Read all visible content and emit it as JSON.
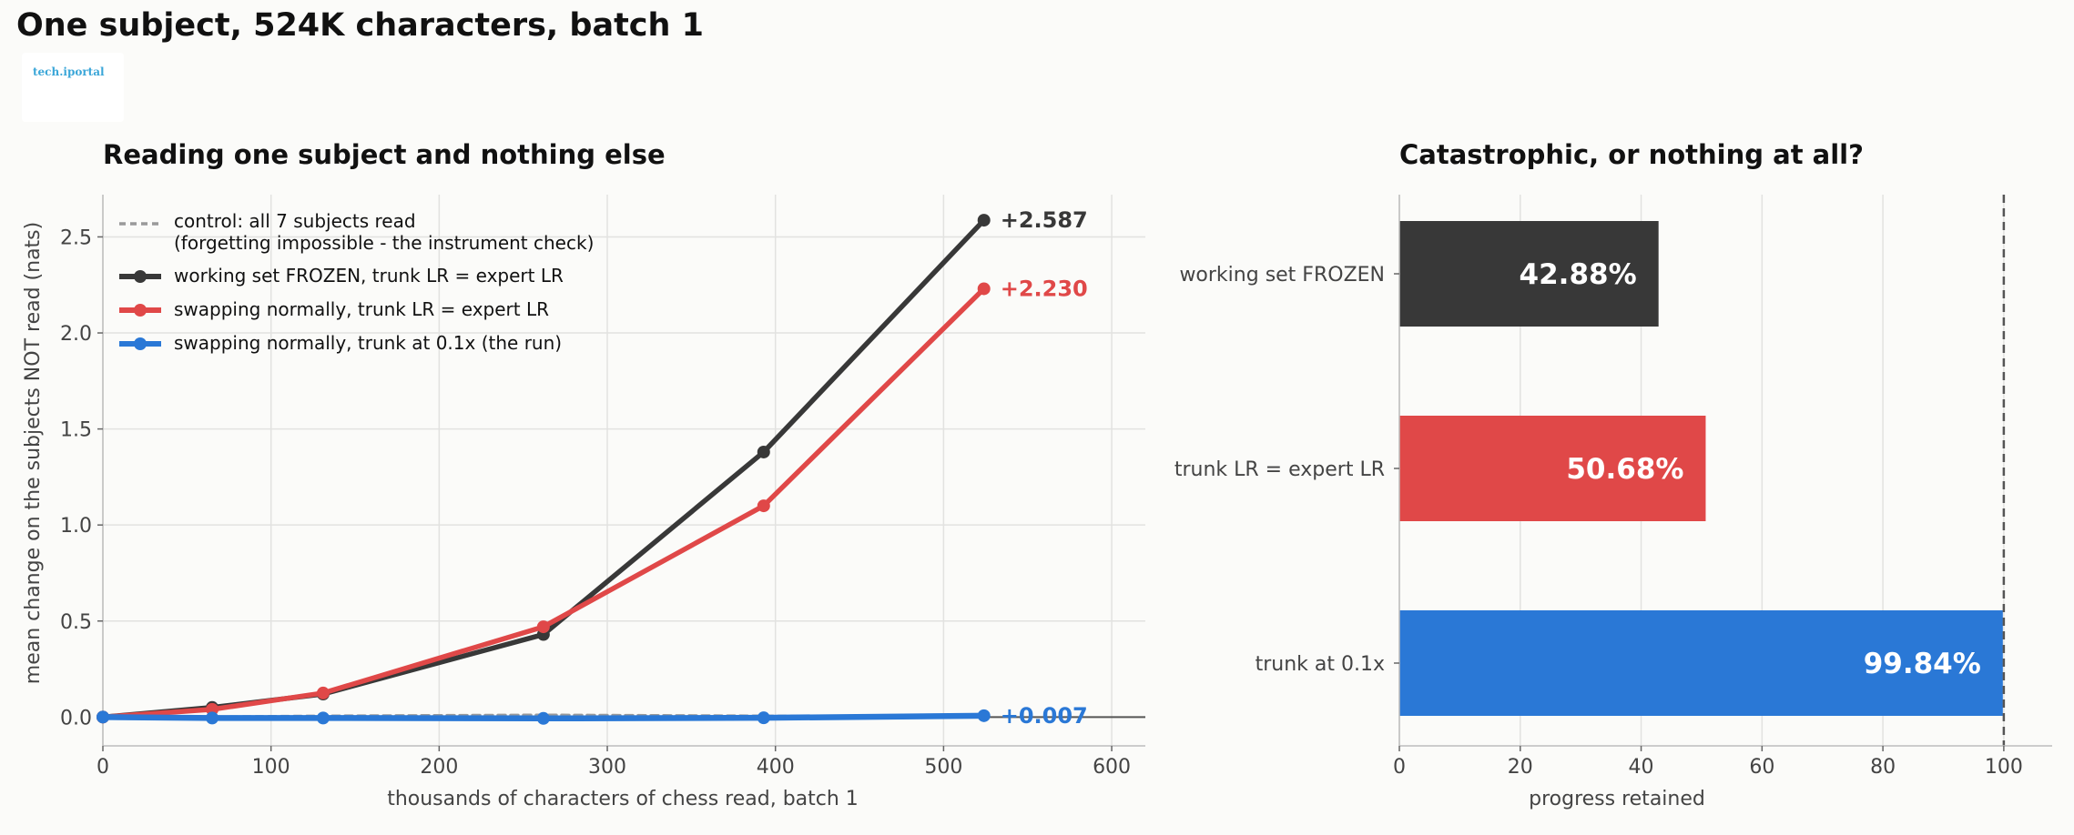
{
  "suptitle": "One subject, 524K characters, batch 1",
  "logo_text": "tech.iportal",
  "chart_data": [
    {
      "type": "line",
      "title": "Reading one subject and nothing else",
      "xlabel": "thousands of characters of chess read, batch 1",
      "ylabel": "mean change on the subjects NOT read (nats)",
      "xlim": [
        0,
        620
      ],
      "ylim": [
        -0.15,
        2.72
      ],
      "xticks": [
        "0",
        "100",
        "200",
        "300",
        "400",
        "500",
        "600"
      ],
      "yticks": [
        "0.0",
        "0.5",
        "1.0",
        "1.5",
        "2.0",
        "2.5"
      ],
      "grid": true,
      "legend_position": "top-left",
      "series": [
        {
          "name": "control: all 7 subjects read",
          "name_line2": "(forgetting impossible - the instrument check)",
          "color": "#9a9a9a",
          "style": "dashed",
          "x": [
            0,
            65,
            131,
            262,
            393,
            524
          ],
          "y": [
            0.0,
            0.0,
            0.005,
            0.01,
            0.005,
            0.0
          ]
        },
        {
          "name": "working set FROZEN, trunk LR = expert LR",
          "color": "#383838",
          "style": "solid",
          "x": [
            0,
            65,
            131,
            262,
            393,
            524
          ],
          "y": [
            0.0,
            0.05,
            0.12,
            0.43,
            1.38,
            2.587
          ],
          "end_label": "+2.587"
        },
        {
          "name": "swapping normally, trunk LR = expert LR",
          "color": "#e04848",
          "style": "solid",
          "x": [
            0,
            65,
            131,
            262,
            393,
            524
          ],
          "y": [
            0.0,
            0.04,
            0.125,
            0.47,
            1.1,
            2.23
          ],
          "end_label": "+2.230"
        },
        {
          "name": "swapping normally, trunk at 0.1x   (the run)",
          "color": "#2a78d6",
          "style": "solid",
          "x": [
            0,
            65,
            131,
            262,
            393,
            524
          ],
          "y": [
            0.0,
            -0.005,
            -0.005,
            -0.007,
            -0.004,
            0.007
          ],
          "end_label": "+0.007"
        }
      ]
    },
    {
      "type": "bar",
      "orientation": "horizontal",
      "title": "Catastrophic, or nothing at all?",
      "xlabel": "progress retained",
      "xlim": [
        0,
        108
      ],
      "xticks": [
        "0",
        "20",
        "40",
        "60",
        "80",
        "100"
      ],
      "reference_line": 100,
      "grid": true,
      "categories": [
        "working set FROZEN",
        "trunk LR = expert LR",
        "trunk at 0.1x"
      ],
      "values": [
        42.88,
        50.68,
        99.84
      ],
      "value_labels": [
        "42.88%",
        "50.68%",
        "99.84%"
      ],
      "colors": [
        "#383838",
        "#e04848",
        "#2a78d6"
      ]
    }
  ]
}
